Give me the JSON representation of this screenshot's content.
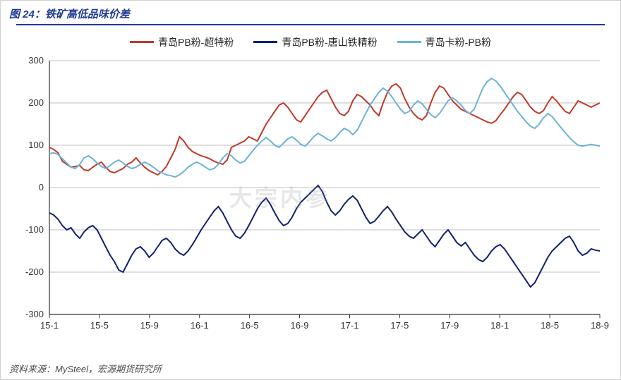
{
  "title": "图 24：铁矿高低品味价差",
  "source": "资料来源：MySteel，宏源期货研究所",
  "watermark": "大宗内参",
  "chart": {
    "type": "line",
    "background_color": "#ffffff",
    "grid_color": "#bfbfbf",
    "axis_color": "#333333",
    "label_fontsize": 13,
    "title_fontsize": 15,
    "title_color": "#1f3a93",
    "ylim": [
      -300,
      300
    ],
    "ytick_step": 100,
    "yticks": [
      -300,
      -200,
      -100,
      0,
      100,
      200,
      300
    ],
    "x_categories": [
      "15-1",
      "15-5",
      "15-9",
      "16-1",
      "16-5",
      "16-9",
      "17-1",
      "17-5",
      "17-9",
      "18-1",
      "18-5",
      "18-9"
    ],
    "legend_position": "top-center",
    "line_width": 2,
    "series": [
      {
        "name": "青岛PB粉-超特粉",
        "color": "#c0392b",
        "values": [
          95,
          90,
          82,
          62,
          55,
          48,
          50,
          52,
          42,
          40,
          48,
          55,
          60,
          48,
          38,
          35,
          40,
          45,
          55,
          60,
          70,
          58,
          48,
          40,
          35,
          30,
          38,
          50,
          70,
          90,
          120,
          110,
          95,
          85,
          80,
          75,
          72,
          68,
          62,
          58,
          55,
          65,
          95,
          100,
          105,
          110,
          120,
          115,
          110,
          130,
          150,
          165,
          180,
          195,
          200,
          190,
          175,
          160,
          155,
          170,
          185,
          200,
          215,
          225,
          230,
          210,
          190,
          175,
          170,
          180,
          205,
          220,
          215,
          205,
          195,
          180,
          170,
          200,
          225,
          240,
          245,
          235,
          210,
          190,
          175,
          165,
          160,
          170,
          200,
          225,
          240,
          235,
          220,
          205,
          195,
          185,
          180,
          175,
          170,
          165,
          160,
          155,
          152,
          158,
          172,
          185,
          200,
          215,
          225,
          220,
          205,
          190,
          180,
          175,
          182,
          200,
          215,
          205,
          192,
          180,
          175,
          190,
          205,
          200,
          195,
          190,
          195,
          200
        ]
      },
      {
        "name": "青岛PB粉-唐山铁精粉",
        "color": "#12206f",
        "values": [
          -60,
          -65,
          -75,
          -90,
          -100,
          -95,
          -110,
          -120,
          -105,
          -95,
          -90,
          -100,
          -120,
          -140,
          -160,
          -175,
          -195,
          -200,
          -180,
          -160,
          -145,
          -140,
          -150,
          -165,
          -155,
          -140,
          -125,
          -120,
          -130,
          -145,
          -155,
          -160,
          -150,
          -135,
          -118,
          -100,
          -85,
          -70,
          -55,
          -45,
          -60,
          -80,
          -100,
          -115,
          -120,
          -108,
          -90,
          -70,
          -50,
          -35,
          -25,
          -40,
          -60,
          -78,
          -90,
          -85,
          -70,
          -50,
          -35,
          -25,
          -15,
          -5,
          5,
          -10,
          -35,
          -55,
          -65,
          -55,
          -40,
          -28,
          -20,
          -30,
          -50,
          -70,
          -85,
          -80,
          -68,
          -55,
          -45,
          -58,
          -75,
          -90,
          -105,
          -115,
          -120,
          -110,
          -100,
          -115,
          -130,
          -140,
          -125,
          -110,
          -100,
          -115,
          -130,
          -138,
          -130,
          -145,
          -160,
          -170,
          -175,
          -165,
          -150,
          -140,
          -135,
          -145,
          -160,
          -175,
          -190,
          -205,
          -220,
          -235,
          -225,
          -205,
          -185,
          -165,
          -150,
          -140,
          -130,
          -120,
          -115,
          -130,
          -150,
          -160,
          -155,
          -145,
          -148,
          -150
        ]
      },
      {
        "name": "青岛卡粉-PB粉",
        "color": "#6bb3d6",
        "values": [
          80,
          82,
          78,
          68,
          58,
          48,
          45,
          55,
          70,
          75,
          68,
          58,
          50,
          45,
          52,
          60,
          65,
          58,
          50,
          45,
          48,
          55,
          60,
          55,
          48,
          40,
          35,
          30,
          28,
          25,
          30,
          38,
          48,
          55,
          60,
          55,
          48,
          42,
          45,
          55,
          70,
          80,
          75,
          65,
          58,
          62,
          75,
          88,
          100,
          110,
          118,
          110,
          100,
          95,
          105,
          115,
          120,
          112,
          102,
          98,
          108,
          120,
          128,
          122,
          115,
          110,
          118,
          130,
          140,
          135,
          125,
          135,
          155,
          175,
          195,
          210,
          225,
          235,
          228,
          215,
          200,
          185,
          175,
          180,
          195,
          205,
          198,
          185,
          172,
          165,
          175,
          190,
          205,
          212,
          205,
          195,
          182,
          175,
          185,
          210,
          235,
          250,
          258,
          252,
          240,
          225,
          210,
          195,
          180,
          168,
          155,
          145,
          140,
          150,
          165,
          175,
          168,
          155,
          142,
          130,
          118,
          108,
          100,
          98,
          100,
          102,
          100,
          98
        ]
      }
    ]
  }
}
